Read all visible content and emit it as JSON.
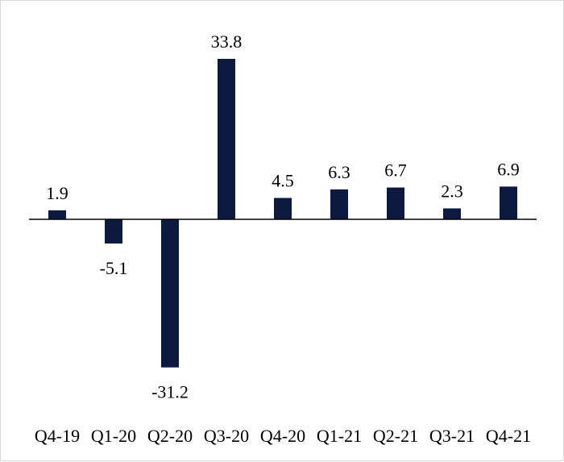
{
  "chart_data": {
    "type": "bar",
    "categories": [
      "Q4-19",
      "Q1-20",
      "Q2-20",
      "Q3-20",
      "Q4-20",
      "Q1-21",
      "Q2-21",
      "Q3-21",
      "Q4-21"
    ],
    "values": [
      1.9,
      -5.1,
      -31.2,
      33.8,
      4.5,
      6.3,
      6.7,
      2.3,
      6.9
    ],
    "value_labels": [
      "1.9",
      "-5.1",
      "-31.2",
      "33.8",
      "4.5",
      "6.3",
      "6.7",
      "2.3",
      "6.9"
    ],
    "title": "",
    "xlabel": "",
    "ylabel": "",
    "ylim": [
      -31.2,
      33.8
    ],
    "grid": false,
    "legend": "none",
    "bar_color": "#0d1a3f",
    "axis_color": "#000000"
  }
}
